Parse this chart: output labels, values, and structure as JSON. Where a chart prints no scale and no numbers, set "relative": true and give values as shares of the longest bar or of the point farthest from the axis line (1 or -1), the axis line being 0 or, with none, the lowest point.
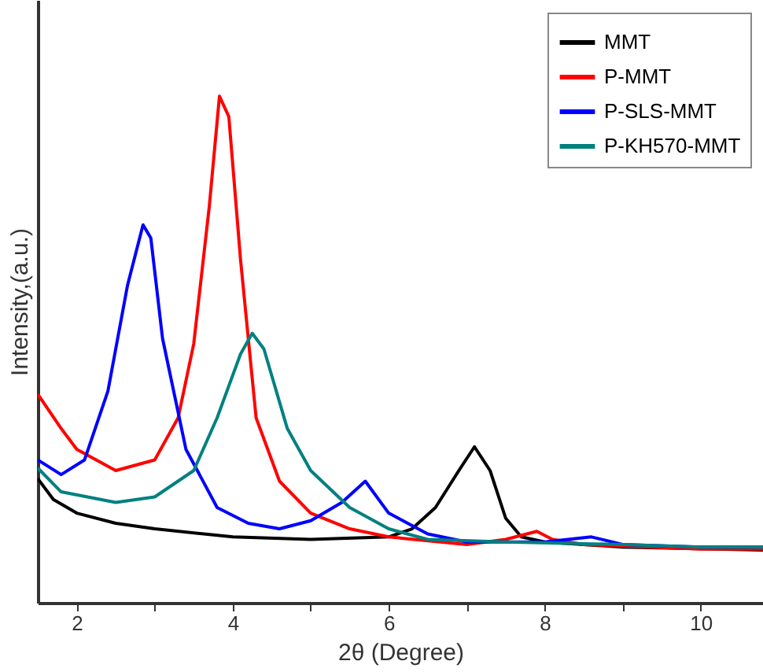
{
  "chart_data": {
    "type": "line",
    "relative": true,
    "xlabel": "2θ (Degree)",
    "ylabel": "Intensity,(a.u.)",
    "xlim": [
      1.5,
      10.8
    ],
    "xticks": [
      2,
      {
        "value": 3,
        "label": null
      },
      4,
      {
        "value": 5,
        "label": null
      },
      6,
      {
        "value": 7,
        "label": null
      },
      8,
      {
        "value": 9,
        "label": null
      },
      10
    ],
    "legend": "top right",
    "grid": false,
    "line_style": "solid",
    "marker": "none",
    "series": [
      {
        "name": "MMT",
        "color": "#000000",
        "x": [
          1.5,
          1.7,
          2.0,
          2.5,
          3,
          4,
          5,
          6,
          6.3,
          6.6,
          6.9,
          7.1,
          7.3,
          7.5,
          7.7,
          8,
          9,
          10.8
        ],
        "values": [
          0.245,
          0.204,
          0.177,
          0.157,
          0.146,
          0.13,
          0.125,
          0.13,
          0.146,
          0.188,
          0.261,
          0.308,
          0.261,
          0.167,
          0.13,
          0.12,
          0.11,
          0.104
        ]
      },
      {
        "name": "P-MMT",
        "color": "#ff0000",
        "x": [
          1.5,
          1.8,
          2.0,
          2.5,
          3.0,
          3.3,
          3.5,
          3.7,
          3.83,
          3.95,
          4.1,
          4.3,
          4.6,
          5,
          5.5,
          6,
          7,
          7.5,
          7.9,
          8.1,
          8.5,
          10,
          10.8
        ],
        "values": [
          0.412,
          0.344,
          0.303,
          0.261,
          0.282,
          0.365,
          0.511,
          0.783,
          1.0,
          0.96,
          0.678,
          0.365,
          0.24,
          0.177,
          0.146,
          0.13,
          0.115,
          0.125,
          0.141,
          0.125,
          0.115,
          0.106,
          0.106
        ]
      },
      {
        "name": "P-SLS-MMT",
        "color": "#0000ff",
        "x": [
          1.5,
          1.8,
          2.1,
          2.4,
          2.65,
          2.85,
          2.95,
          3.1,
          3.4,
          3.8,
          4.2,
          4.6,
          5.0,
          5.4,
          5.7,
          6.0,
          6.5,
          7,
          8,
          8.6,
          9,
          10,
          10.8
        ],
        "values": [
          0.282,
          0.253,
          0.282,
          0.418,
          0.626,
          0.746,
          0.72,
          0.522,
          0.303,
          0.188,
          0.157,
          0.146,
          0.162,
          0.198,
          0.24,
          0.177,
          0.136,
          0.12,
          0.12,
          0.13,
          0.115,
          0.11,
          0.11
        ]
      },
      {
        "name": "P-KH570-MMT",
        "color": "#008080",
        "x": [
          1.5,
          1.8,
          2.5,
          3.0,
          3.5,
          3.8,
          4.1,
          4.25,
          4.4,
          4.7,
          5,
          5.5,
          6,
          6.5,
          7.5,
          9,
          10,
          10.8
        ],
        "values": [
          0.266,
          0.219,
          0.198,
          0.209,
          0.261,
          0.365,
          0.491,
          0.532,
          0.501,
          0.344,
          0.261,
          0.188,
          0.146,
          0.125,
          0.12,
          0.115,
          0.11,
          0.11
        ]
      }
    ]
  }
}
